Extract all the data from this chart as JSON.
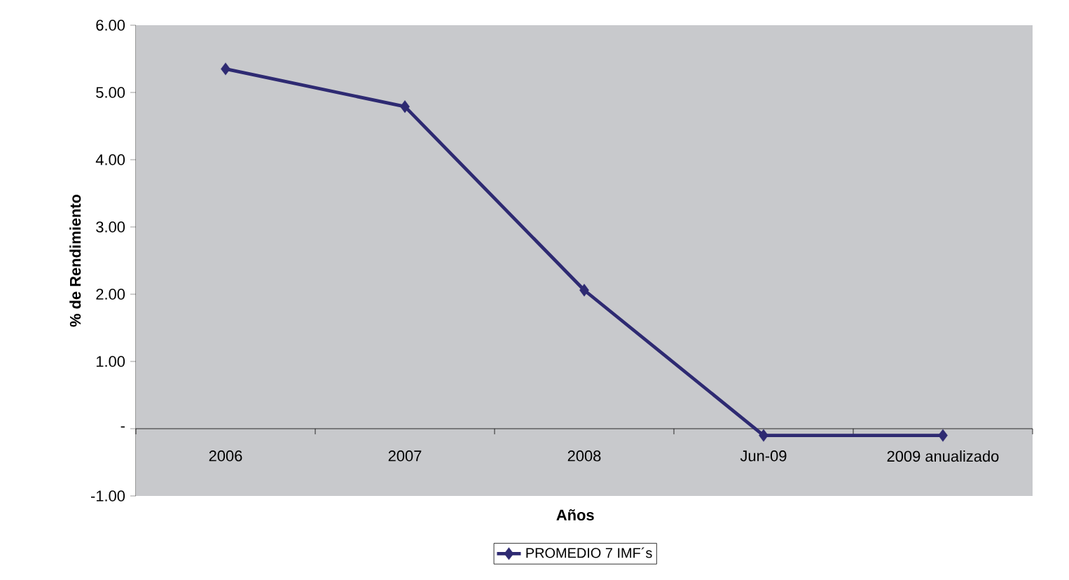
{
  "chart_data": {
    "type": "line",
    "xlabel": "Años",
    "ylabel": "% de Rendimiento",
    "categories": [
      "2006",
      "2007",
      "2008",
      "Jun-09",
      "2009 anualizado"
    ],
    "series": [
      {
        "name": "PROMEDIO 7 IMF´s",
        "color": "#2e2a72",
        "values": [
          5.35,
          4.79,
          2.06,
          -0.1,
          -0.1
        ]
      }
    ],
    "ylim": [
      -1,
      6
    ],
    "yticks": [
      {
        "value": -1,
        "label": "-1.00"
      },
      {
        "value": 0,
        "label": "-"
      },
      {
        "value": 1,
        "label": "1.00"
      },
      {
        "value": 2,
        "label": "2.00"
      },
      {
        "value": 3,
        "label": "3.00"
      },
      {
        "value": 4,
        "label": "4.00"
      },
      {
        "value": 5,
        "label": "5.00"
      },
      {
        "value": 6,
        "label": "6.00"
      }
    ],
    "marker": "diamond",
    "legend": "bottom"
  }
}
